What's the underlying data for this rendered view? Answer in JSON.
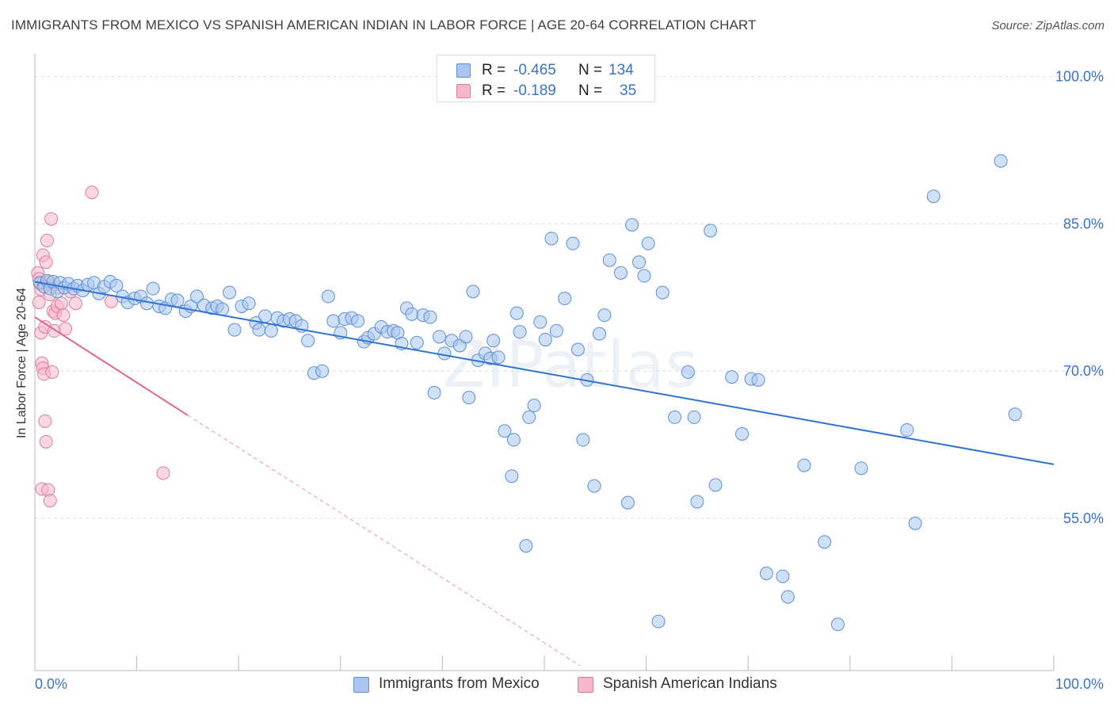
{
  "title": "IMMIGRANTS FROM MEXICO VS SPANISH AMERICAN INDIAN IN LABOR FORCE | AGE 20-64 CORRELATION CHART",
  "source": "Source: ZipAtlas.com",
  "watermark": "ZIPatlas",
  "colors": {
    "blue_fill": "#a9c6ef",
    "blue_stroke": "#5b8fd6",
    "blue_line": "#2f73d2",
    "pink_fill": "#f5b8cb",
    "pink_stroke": "#e07a9c",
    "pink_line": "#e0668f",
    "axis_label": "#3a73c8",
    "grid": "#dddddd"
  },
  "stats": [
    {
      "r_label": "R =",
      "r_value": "-0.465",
      "n_label": "N =",
      "n_value": "134",
      "color": "blue"
    },
    {
      "r_label": "R =",
      "r_value": "-0.189",
      "n_label": "N =",
      "n_value": "35",
      "color": "pink"
    }
  ],
  "chart_data": {
    "type": "scatter",
    "title": "IMMIGRANTS FROM MEXICO VS SPANISH AMERICAN INDIAN IN LABOR FORCE | AGE 20-64 CORRELATION CHART",
    "xlabel": "",
    "ylabel": "In Labor Force | Age 20-64",
    "xlim": [
      0,
      100
    ],
    "ylim": [
      39.5,
      101.5
    ],
    "x_tick_labels": [
      "0.0%",
      "100.0%"
    ],
    "y_ticks": [
      55,
      70,
      85,
      100
    ],
    "y_tick_labels": [
      "55.0%",
      "70.0%",
      "85.0%",
      "100.0%"
    ],
    "grid": true,
    "legend_position": "bottom",
    "series": [
      {
        "name": "Immigrants from Mexico",
        "color": "blue",
        "trend": {
          "x": [
            0,
            100
          ],
          "y": [
            79.1,
            60.5
          ]
        },
        "points": [
          [
            0.5,
            79.0
          ],
          [
            0.9,
            78.6
          ],
          [
            1.2,
            79.2
          ],
          [
            1.5,
            78.4
          ],
          [
            1.8,
            79.1
          ],
          [
            2.2,
            78.1
          ],
          [
            2.5,
            79.0
          ],
          [
            2.9,
            78.5
          ],
          [
            3.3,
            78.9
          ],
          [
            3.8,
            78.4
          ],
          [
            4.2,
            78.7
          ],
          [
            4.7,
            78.2
          ],
          [
            5.2,
            78.8
          ],
          [
            5.8,
            79.0
          ],
          [
            6.3,
            77.9
          ],
          [
            6.8,
            78.6
          ],
          [
            7.4,
            79.1
          ],
          [
            8.0,
            78.7
          ],
          [
            8.6,
            77.6
          ],
          [
            9.1,
            77.0
          ],
          [
            9.8,
            77.4
          ],
          [
            10.4,
            77.6
          ],
          [
            11.0,
            76.9
          ],
          [
            11.6,
            78.4
          ],
          [
            12.2,
            76.6
          ],
          [
            12.8,
            76.4
          ],
          [
            13.4,
            77.3
          ],
          [
            14.0,
            77.2
          ],
          [
            14.8,
            76.1
          ],
          [
            15.3,
            76.6
          ],
          [
            15.9,
            77.6
          ],
          [
            16.6,
            76.7
          ],
          [
            17.4,
            76.4
          ],
          [
            17.9,
            76.6
          ],
          [
            18.4,
            76.3
          ],
          [
            19.1,
            78.0
          ],
          [
            19.6,
            74.2
          ],
          [
            20.3,
            76.6
          ],
          [
            21.0,
            76.9
          ],
          [
            21.7,
            74.9
          ],
          [
            22.0,
            74.2
          ],
          [
            22.6,
            75.6
          ],
          [
            23.2,
            74.1
          ],
          [
            23.8,
            75.4
          ],
          [
            24.4,
            75.1
          ],
          [
            25.0,
            75.3
          ],
          [
            25.6,
            75.1
          ],
          [
            26.2,
            74.6
          ],
          [
            26.8,
            73.1
          ],
          [
            27.4,
            69.8
          ],
          [
            28.2,
            70.0
          ],
          [
            28.8,
            77.6
          ],
          [
            29.3,
            75.1
          ],
          [
            30.0,
            73.9
          ],
          [
            30.4,
            75.3
          ],
          [
            31.1,
            75.4
          ],
          [
            31.7,
            75.1
          ],
          [
            32.3,
            73.0
          ],
          [
            32.7,
            73.4
          ],
          [
            33.3,
            73.8
          ],
          [
            34.0,
            74.5
          ],
          [
            34.6,
            74.0
          ],
          [
            35.2,
            74.1
          ],
          [
            35.6,
            73.9
          ],
          [
            36.0,
            72.8
          ],
          [
            36.5,
            76.4
          ],
          [
            37.0,
            75.8
          ],
          [
            37.5,
            72.9
          ],
          [
            38.1,
            75.7
          ],
          [
            38.8,
            75.5
          ],
          [
            39.2,
            67.8
          ],
          [
            39.7,
            73.5
          ],
          [
            40.2,
            71.8
          ],
          [
            40.9,
            73.1
          ],
          [
            41.7,
            72.6
          ],
          [
            42.3,
            73.5
          ],
          [
            42.6,
            67.3
          ],
          [
            43.0,
            78.1
          ],
          [
            43.5,
            71.1
          ],
          [
            44.2,
            71.8
          ],
          [
            44.7,
            71.3
          ],
          [
            45.0,
            73.1
          ],
          [
            45.5,
            71.4
          ],
          [
            46.1,
            63.9
          ],
          [
            46.8,
            59.3
          ],
          [
            47.3,
            75.9
          ],
          [
            47.6,
            74.0
          ],
          [
            48.2,
            52.2
          ],
          [
            48.5,
            65.3
          ],
          [
            49.0,
            66.5
          ],
          [
            49.6,
            75.0
          ],
          [
            50.1,
            73.2
          ],
          [
            50.7,
            83.5
          ],
          [
            51.2,
            74.1
          ],
          [
            52.0,
            77.4
          ],
          [
            52.8,
            83.0
          ],
          [
            53.3,
            72.2
          ],
          [
            53.8,
            63.0
          ],
          [
            54.2,
            69.1
          ],
          [
            54.9,
            58.3
          ],
          [
            55.4,
            73.8
          ],
          [
            55.9,
            75.7
          ],
          [
            56.4,
            81.3
          ],
          [
            57.5,
            80.0
          ],
          [
            58.2,
            56.6
          ],
          [
            58.6,
            84.9
          ],
          [
            59.3,
            81.1
          ],
          [
            59.8,
            79.7
          ],
          [
            60.2,
            83.0
          ],
          [
            61.2,
            44.5
          ],
          [
            61.6,
            78.0
          ],
          [
            62.8,
            65.3
          ],
          [
            64.1,
            69.9
          ],
          [
            64.7,
            65.3
          ],
          [
            65.0,
            56.7
          ],
          [
            66.3,
            84.3
          ],
          [
            66.8,
            58.4
          ],
          [
            68.4,
            69.4
          ],
          [
            69.4,
            63.6
          ],
          [
            70.3,
            69.2
          ],
          [
            71.0,
            69.1
          ],
          [
            71.8,
            49.4
          ],
          [
            73.4,
            49.1
          ],
          [
            73.9,
            47.0
          ],
          [
            75.5,
            60.4
          ],
          [
            77.5,
            52.6
          ],
          [
            78.8,
            44.2
          ],
          [
            81.1,
            60.1
          ],
          [
            85.6,
            64.0
          ],
          [
            86.4,
            54.5
          ],
          [
            88.2,
            87.8
          ],
          [
            94.8,
            91.4
          ],
          [
            96.2,
            65.6
          ],
          [
            47.0,
            63.0
          ]
        ]
      },
      {
        "name": "Spanish American Indians",
        "color": "pink",
        "trend": {
          "x": [
            0,
            15
          ],
          "y": [
            75.5,
            65.5
          ]
        },
        "trend_extension": {
          "x": [
            15,
            53.5
          ],
          "y": [
            65.5,
            40.0
          ]
        },
        "points": [
          [
            0.3,
            80.0
          ],
          [
            0.4,
            79.4
          ],
          [
            0.5,
            78.9
          ],
          [
            0.6,
            78.3
          ],
          [
            0.4,
            77.0
          ],
          [
            0.6,
            73.9
          ],
          [
            0.7,
            70.8
          ],
          [
            0.8,
            70.3
          ],
          [
            0.9,
            69.7
          ],
          [
            0.7,
            58.0
          ],
          [
            1.0,
            64.9
          ],
          [
            1.1,
            62.8
          ],
          [
            1.3,
            57.9
          ],
          [
            1.5,
            56.8
          ],
          [
            0.8,
            81.8
          ],
          [
            1.0,
            74.5
          ],
          [
            1.1,
            81.1
          ],
          [
            1.2,
            83.3
          ],
          [
            1.4,
            79.1
          ],
          [
            1.5,
            77.8
          ],
          [
            1.6,
            85.5
          ],
          [
            1.8,
            76.1
          ],
          [
            1.9,
            74.1
          ],
          [
            2.0,
            75.9
          ],
          [
            2.2,
            76.6
          ],
          [
            2.3,
            78.5
          ],
          [
            2.6,
            76.9
          ],
          [
            2.8,
            75.7
          ],
          [
            3.0,
            74.3
          ],
          [
            3.5,
            78.1
          ],
          [
            4.0,
            76.9
          ],
          [
            5.6,
            88.2
          ],
          [
            7.5,
            77.1
          ],
          [
            12.6,
            59.6
          ],
          [
            1.7,
            69.9
          ]
        ]
      }
    ]
  }
}
